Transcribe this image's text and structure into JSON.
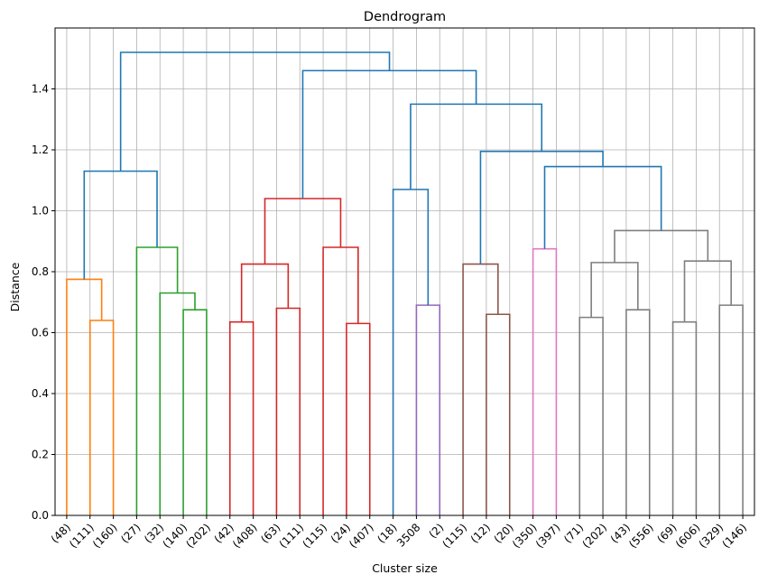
{
  "chart_data": {
    "type": "dendrogram",
    "title": "Dendrogram",
    "xlabel": "Cluster size",
    "ylabel": "Distance",
    "ylim": [
      0,
      1.6
    ],
    "y_ticks": [
      0.0,
      0.2,
      0.4,
      0.6,
      0.8,
      1.0,
      1.2,
      1.4
    ],
    "grid": true,
    "leaf_labels": [
      "(48)",
      "(111)",
      "(160)",
      "(27)",
      "(32)",
      "(140)",
      "(202)",
      "(42)",
      "(408)",
      "(63)",
      "(111)",
      "(115)",
      "(24)",
      "(407)",
      "(18)",
      "3508",
      "(2)",
      "(115)",
      "(12)",
      "(20)",
      "(350)",
      "(397)",
      "(71)",
      "(202)",
      "(43)",
      "(556)",
      "(69)",
      "(606)",
      "(329)",
      "(146)"
    ],
    "links": [
      {
        "x": [
          1,
          2
        ],
        "y": 0.64,
        "color": "#ff7f0e"
      },
      {
        "x": [
          0,
          1.5
        ],
        "y": 0.775,
        "color": "#ff7f0e"
      },
      {
        "x": [
          5,
          6
        ],
        "y": 0.675,
        "color": "#2ca02c"
      },
      {
        "x": [
          4,
          5.5
        ],
        "y": 0.73,
        "color": "#2ca02c"
      },
      {
        "x": [
          3,
          4.75
        ],
        "y": 0.88,
        "color": "#2ca02c"
      },
      {
        "x": [
          0.75,
          3.875
        ],
        "y": 1.13,
        "color": "#1f77b4"
      },
      {
        "x": [
          7,
          8
        ],
        "y": 0.635,
        "color": "#d62728"
      },
      {
        "x": [
          9,
          10
        ],
        "y": 0.68,
        "color": "#d62728"
      },
      {
        "x": [
          7.5,
          9.5
        ],
        "y": 0.825,
        "color": "#d62728"
      },
      {
        "x": [
          12,
          13
        ],
        "y": 0.63,
        "color": "#d62728"
      },
      {
        "x": [
          11,
          12.5
        ],
        "y": 0.88,
        "color": "#d62728"
      },
      {
        "x": [
          8.5,
          11.75
        ],
        "y": 1.04,
        "color": "#d62728"
      },
      {
        "x": [
          15,
          16
        ],
        "y": 0.69,
        "color": "#9467bd"
      },
      {
        "x": [
          14,
          15.5
        ],
        "y": 1.07,
        "color": "#1f77b4"
      },
      {
        "x": [
          18,
          19
        ],
        "y": 0.66,
        "color": "#8c564b"
      },
      {
        "x": [
          17,
          18.5
        ],
        "y": 0.825,
        "color": "#8c564b"
      },
      {
        "x": [
          20,
          21
        ],
        "y": 0.875,
        "color": "#e377c2"
      },
      {
        "x": [
          22,
          23
        ],
        "y": 0.65,
        "color": "#7f7f7f"
      },
      {
        "x": [
          24,
          25
        ],
        "y": 0.675,
        "color": "#7f7f7f"
      },
      {
        "x": [
          22.5,
          24.5
        ],
        "y": 0.83,
        "color": "#7f7f7f"
      },
      {
        "x": [
          26,
          27
        ],
        "y": 0.635,
        "color": "#7f7f7f"
      },
      {
        "x": [
          28,
          29
        ],
        "y": 0.69,
        "color": "#7f7f7f"
      },
      {
        "x": [
          26.5,
          28.5
        ],
        "y": 0.835,
        "color": "#7f7f7f"
      },
      {
        "x": [
          23.5,
          27.5
        ],
        "y": 0.935,
        "color": "#7f7f7f"
      },
      {
        "x": [
          20.5,
          25.5
        ],
        "y": 1.145,
        "color": "#1f77b4"
      },
      {
        "x": [
          17.75,
          23
        ],
        "y": 1.195,
        "color": "#1f77b4"
      },
      {
        "x": [
          14.75,
          20.375
        ],
        "y": 1.35,
        "color": "#1f77b4"
      },
      {
        "x": [
          10.125,
          17.5625
        ],
        "y": 1.46,
        "color": "#1f77b4"
      },
      {
        "x": [
          2.3125,
          13.84375
        ],
        "y": 1.52,
        "color": "#1f77b4"
      }
    ],
    "colors": {
      "grid": "#b0b0b0",
      "axis": "#000000"
    }
  }
}
